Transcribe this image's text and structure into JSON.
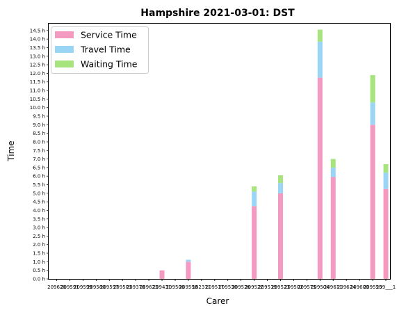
{
  "chart_data": {
    "type": "bar",
    "stacked": true,
    "title": "Hampshire 2021-03-01: DST",
    "xlabel": "Carer",
    "ylabel": "Time",
    "ylim": [
      0,
      14.9
    ],
    "ytick_step": 0.5,
    "ytick_suffix": " h",
    "grid": false,
    "legend_position": "top-left",
    "categories": [
      "209620",
      "209591",
      "209599",
      "209580",
      "209597",
      "209503",
      "209378",
      "209623",
      "209431",
      "209506",
      "209598",
      "182311",
      "209517",
      "209530",
      "209526",
      "209522",
      "209519",
      "209523",
      "209502",
      "209575",
      "209504",
      "209611",
      "209624",
      "209600",
      "209555",
      "209___1"
    ],
    "series": [
      {
        "name": "Service Time",
        "color": "#f49ac1",
        "values": [
          0,
          0,
          0,
          0,
          0,
          0,
          0,
          0,
          0.5,
          0,
          1.0,
          0,
          0,
          0,
          0,
          4.25,
          0,
          5.0,
          0,
          0,
          11.75,
          5.95,
          0,
          0,
          9.0,
          5.25
        ]
      },
      {
        "name": "Travel Time",
        "color": "#9ad5f5",
        "values": [
          0,
          0,
          0,
          0,
          0,
          0,
          0,
          0,
          0,
          0,
          0.12,
          0,
          0,
          0,
          0,
          0.85,
          0,
          0.6,
          0,
          0,
          2.1,
          0.55,
          0,
          0,
          1.3,
          0.95
        ]
      },
      {
        "name": "Waiting Time",
        "color": "#a8e47e",
        "values": [
          0,
          0,
          0,
          0,
          0,
          0,
          0,
          0,
          0,
          0,
          0,
          0,
          0,
          0,
          0,
          0.3,
          0,
          0.45,
          0,
          0,
          0.7,
          0.5,
          0,
          0,
          1.6,
          0.5
        ]
      }
    ]
  }
}
